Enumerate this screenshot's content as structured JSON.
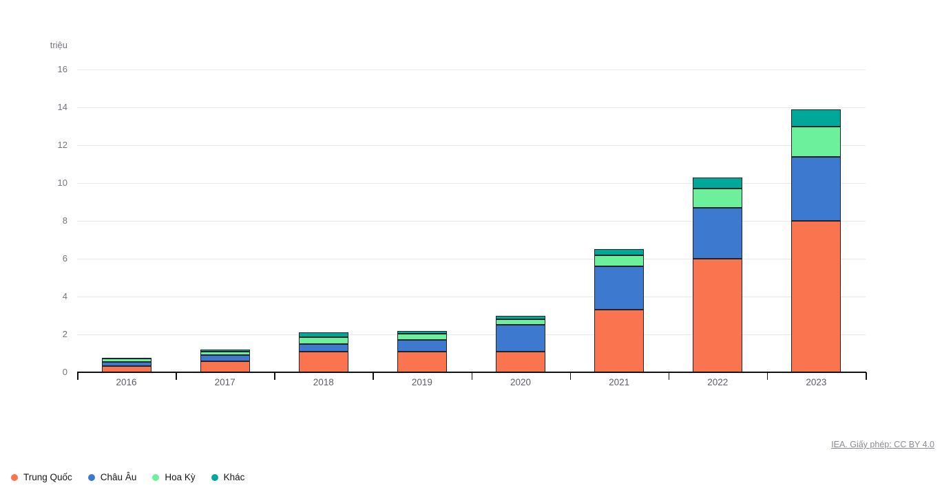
{
  "attribution": {
    "label": "IEA. Giấy phép: CC BY 4.0"
  },
  "chart_data": {
    "type": "bar",
    "stacked": true,
    "title": "",
    "xlabel": "",
    "ylabel": "triệu",
    "ylim": [
      0,
      16
    ],
    "yticks": [
      0,
      2,
      4,
      6,
      8,
      10,
      12,
      14,
      16
    ],
    "grid": true,
    "legend_position": "bottom-left",
    "categories": [
      "2016",
      "2017",
      "2018",
      "2019",
      "2020",
      "2021",
      "2022",
      "2023"
    ],
    "series": [
      {
        "name": "Trung Quốc",
        "color": "#fb7450",
        "values": [
          0.33,
          0.6,
          1.1,
          1.1,
          1.1,
          3.3,
          6.0,
          8.0
        ]
      },
      {
        "name": "Châu Âu",
        "color": "#3d79ce",
        "values": [
          0.22,
          0.3,
          0.4,
          0.6,
          1.4,
          2.3,
          2.7,
          3.4
        ]
      },
      {
        "name": "Hoa Kỳ",
        "color": "#6df09b",
        "values": [
          0.16,
          0.2,
          0.36,
          0.33,
          0.3,
          0.6,
          1.0,
          1.6
        ]
      },
      {
        "name": "Khác",
        "color": "#00a89a",
        "values": [
          0.04,
          0.1,
          0.24,
          0.17,
          0.2,
          0.3,
          0.6,
          0.9
        ]
      }
    ]
  }
}
